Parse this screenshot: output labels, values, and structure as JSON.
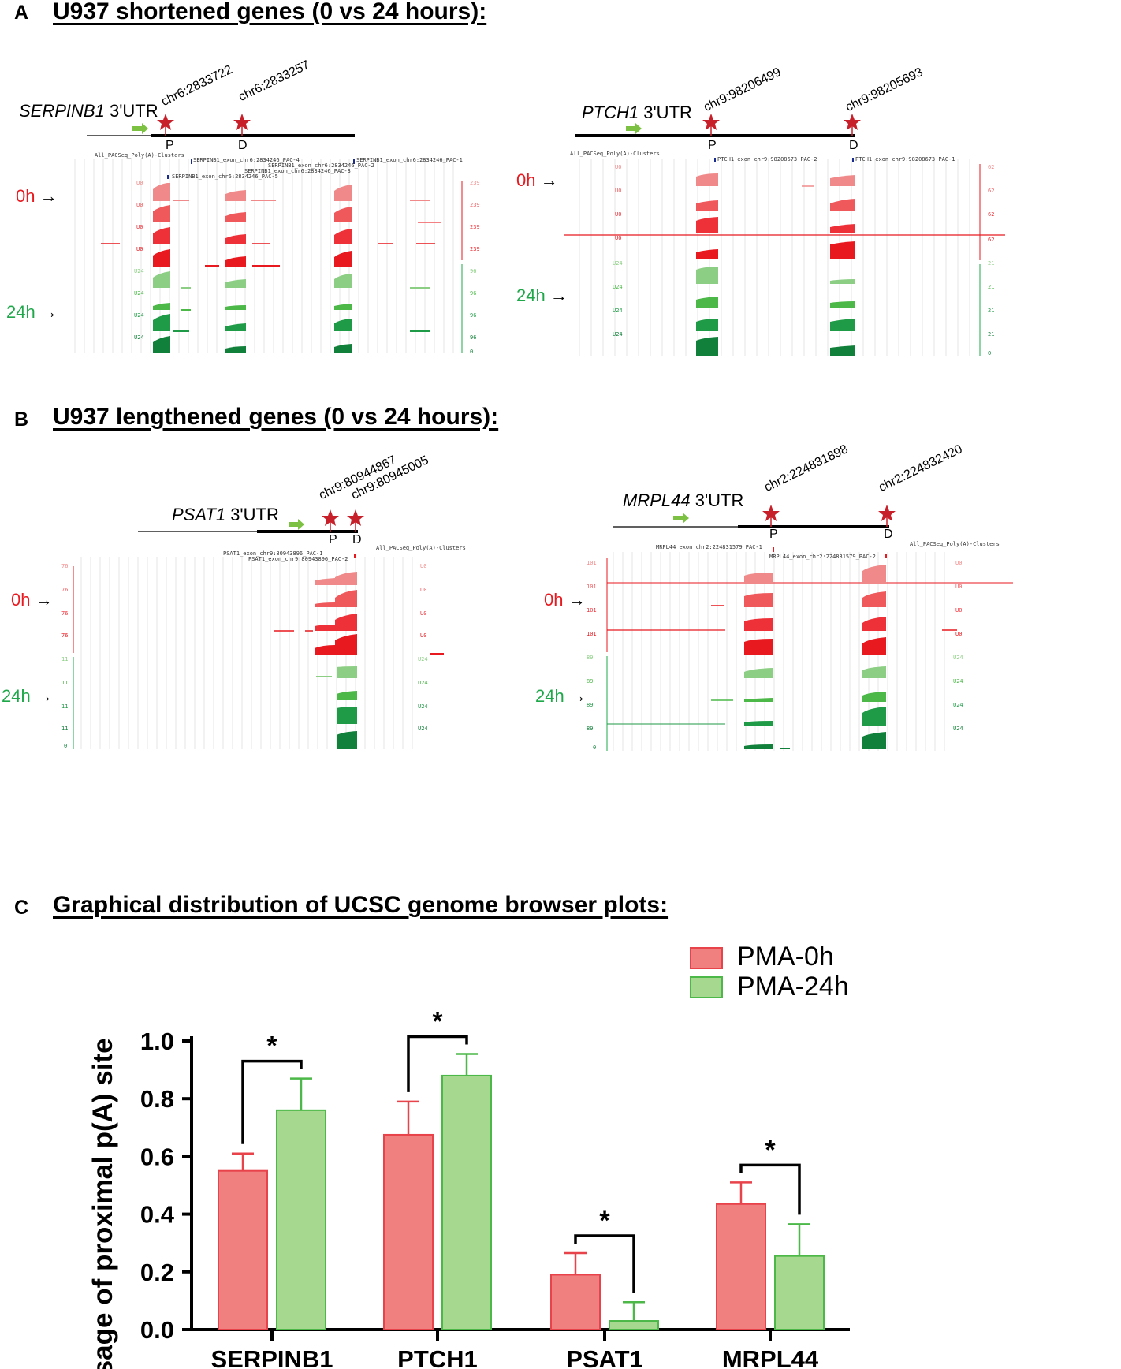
{
  "panel_a": {
    "letter": "A",
    "title": "U937 shortened genes (0 vs 24 hours):",
    "left": {
      "gene_italic": "SERPINB1",
      "gene_suffix": "3'UTR",
      "coord_p": "chr6:2833722",
      "coord_d": "chr6:2833257",
      "p_label": "P",
      "d_label": "D",
      "track_header": "All_PACSeq_Poly(A)-Clusters",
      "features": [
        "SERPINB1_exon_chr6:2834246_PAC-4",
        "SERPINB1_exon_chr6:2834246_PAC-1",
        "SERPINB1_exon_chr6:2834246_PAC-2",
        "SERPINB1_exon_chr6:2834246_PAC-3",
        "SERPINB1_exon_chr6:2834246_PAC-5"
      ],
      "label_0h": "0h",
      "label_24h": "24h",
      "arrow": "→",
      "scale_red": "239",
      "scale_green": "96",
      "scale_zero": "0",
      "track_0h": "U0",
      "track_24h": "U24"
    },
    "right": {
      "gene_italic": "PTCH1",
      "gene_suffix": "3'UTR",
      "coord_p": "chr9:98206499",
      "coord_d": "chr9:98205693",
      "p_label": "P",
      "d_label": "D",
      "track_header": "All_PACSeq_Poly(A)-Clusters",
      "features": [
        "PTCH1_exon_chr9:98208673_PAC-2",
        "PTCH1_exon_chr9:98208673_PAC-1"
      ],
      "label_0h": "0h",
      "label_24h": "24h",
      "arrow": "→",
      "scale_red": "62",
      "scale_green": "21",
      "scale_zero": "0",
      "track_0h": "U0",
      "track_24h": "U24"
    }
  },
  "panel_b": {
    "letter": "B",
    "title": "U937 lengthened genes (0 vs 24 hours):",
    "left": {
      "gene_italic": "PSAT1",
      "gene_suffix": "3'UTR",
      "coord_p": "chr9:80944867",
      "coord_d": "chr9:80945005",
      "p_label": "P",
      "d_label": "D",
      "track_header": "All_PACSeq_Poly(A)-Clusters",
      "features": [
        "PSAT1_exon_chr9:80943896_PAC-1",
        "PSAT1_exon_chr9:80943896_PAC-2"
      ],
      "label_0h": "0h",
      "label_24h": "24h",
      "arrow": "→",
      "scale_red": "76",
      "scale_green": "11",
      "scale_zero": "0",
      "track_0h": "U0",
      "track_24h": "U24"
    },
    "right": {
      "gene_italic": "MRPL44",
      "gene_suffix": "3'UTR",
      "coord_p": "chr2:224831898",
      "coord_d": "chr2:224832420",
      "p_label": "P",
      "d_label": "D",
      "track_header": "All_PACSeq_Poly(A)-Clusters",
      "features": [
        "MRPL44_exon_chr2:224831579_PAC-1",
        "MRPL44_exon_chr2:224831579_PAC-2"
      ],
      "label_0h": "0h",
      "label_24h": "24h",
      "arrow": "→",
      "scale_red": "101",
      "scale_green": "89",
      "scale_zero": "0",
      "track_0h": "U0",
      "track_24h": "U24"
    }
  },
  "panel_c": {
    "letter": "C",
    "title": "Graphical distribution of UCSC genome browser plots:"
  },
  "colors": {
    "red_dark": "#e8191f",
    "red_light": "#f08a8a",
    "green_dark": "#11803a",
    "green_light": "#8ccf84",
    "bar_red": "#f07f80",
    "bar_red_edge": "#e8424a",
    "bar_green": "#a7d88f",
    "bar_green_edge": "#4cb848",
    "star": "#c8202a",
    "arrow_green": "#7cc142"
  },
  "chart_data": {
    "type": "bar",
    "categories": [
      "SERPINB1",
      "PTCH1",
      "PSAT1",
      "MRPL44"
    ],
    "series": [
      {
        "name": "PMA-0h",
        "values": [
          0.55,
          0.675,
          0.19,
          0.435
        ],
        "errors": [
          0.06,
          0.115,
          0.075,
          0.075
        ]
      },
      {
        "name": "PMA-24h",
        "values": [
          0.76,
          0.88,
          0.03,
          0.255
        ],
        "errors": [
          0.11,
          0.075,
          0.065,
          0.11
        ]
      }
    ],
    "significance": [
      "*",
      "*",
      "*",
      "*"
    ],
    "ylabel": "Usage of proximal p(A) site",
    "xlabel": "",
    "ylim": [
      0.0,
      1.0
    ],
    "yticks": [
      "0.0",
      "0.2",
      "0.4",
      "0.6",
      "0.8",
      "1.0"
    ],
    "legend_position": "top-right"
  }
}
